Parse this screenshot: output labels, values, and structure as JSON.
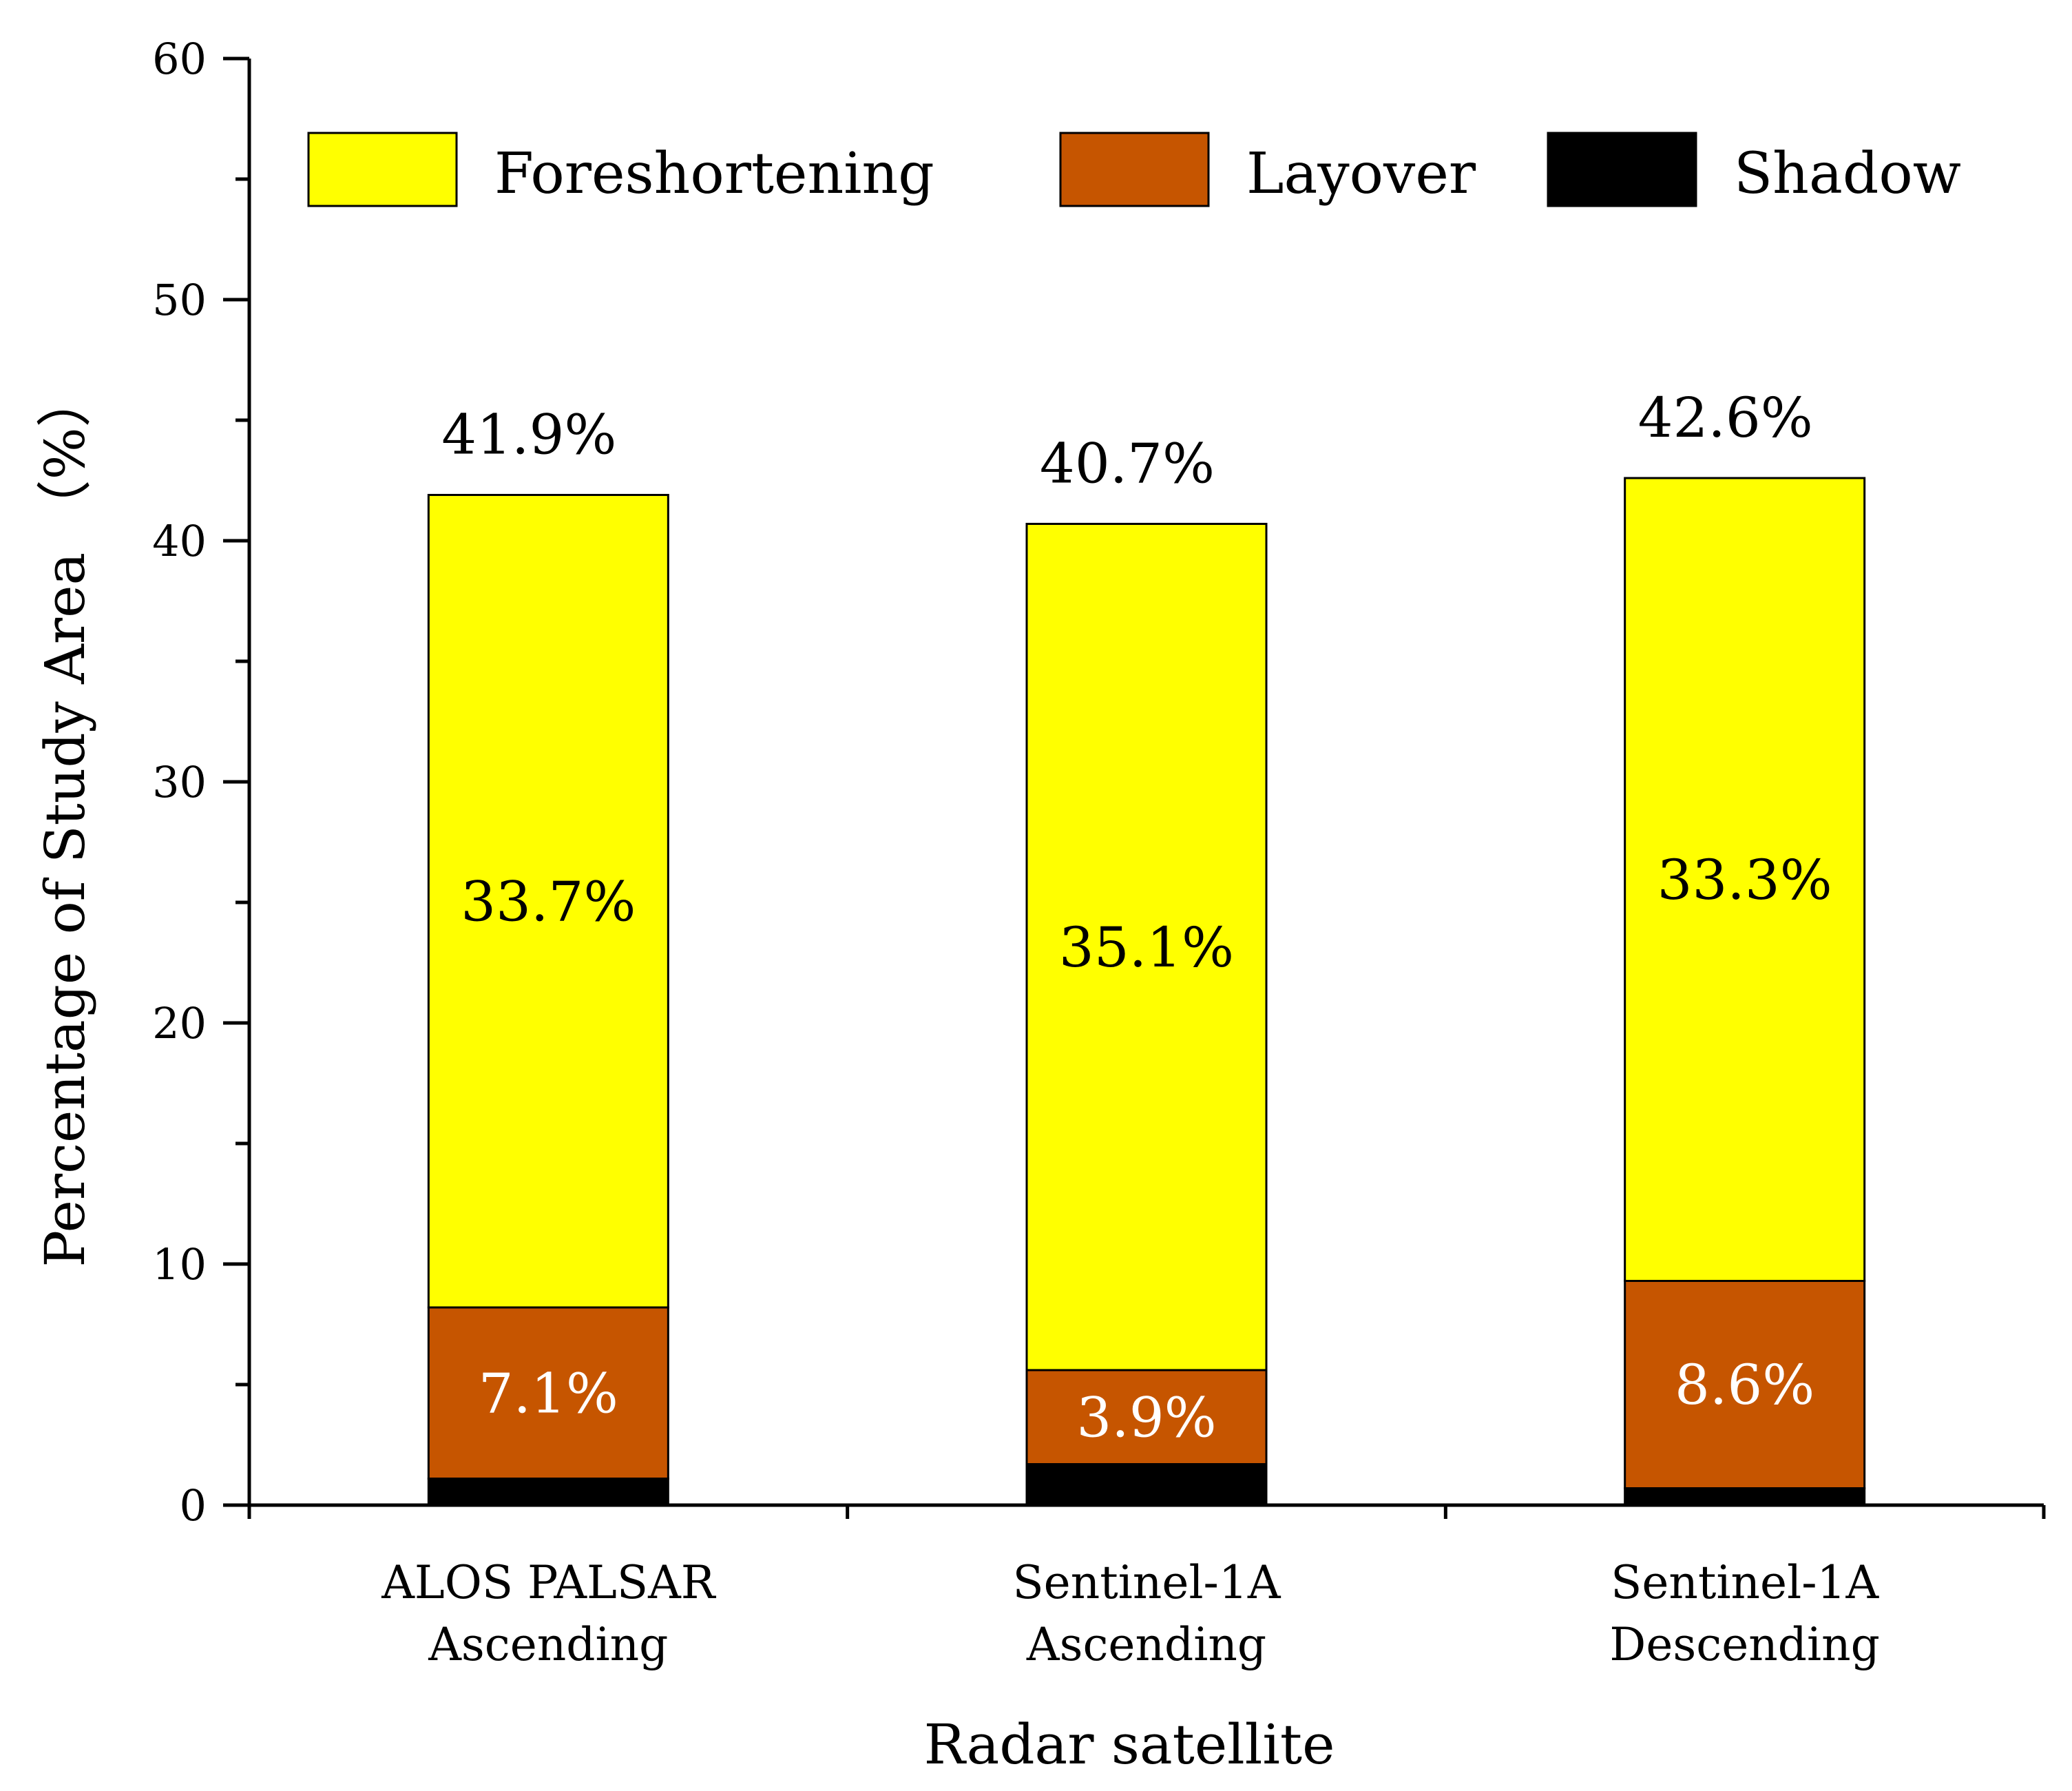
{
  "chart_data": {
    "type": "bar",
    "stacked": true,
    "title": "",
    "xlabel": "Radar satellite",
    "ylabel": "Percentage of Study Area （%）",
    "ylim": [
      0,
      60
    ],
    "yticks": [
      0,
      10,
      20,
      30,
      40,
      50,
      60
    ],
    "categories": [
      [
        "ALOS PALSAR",
        "Ascending"
      ],
      [
        "Sentinel-1A",
        "Ascending"
      ],
      [
        "Sentinel-1A",
        "Descending"
      ]
    ],
    "series": [
      {
        "name": "Shadow",
        "color": "#000000",
        "values": [
          1.1,
          1.7,
          0.7
        ],
        "labels": [
          null,
          null,
          null
        ],
        "label_color": "#ffffff"
      },
      {
        "name": "Layover",
        "color": "#c65500",
        "values": [
          7.1,
          3.9,
          8.6
        ],
        "labels": [
          "7.1%",
          "3.9%",
          "8.6%"
        ],
        "label_color": "#ffffff"
      },
      {
        "name": "Foreshortening",
        "color": "#ffff00",
        "values": [
          33.7,
          35.1,
          33.3
        ],
        "labels": [
          "33.7%",
          "35.1%",
          "33.3%"
        ],
        "label_color": "#000000"
      }
    ],
    "totals": [
      41.9,
      40.7,
      42.6
    ],
    "total_labels": [
      "41.9%",
      "40.7%",
      "42.6%"
    ],
    "legend": {
      "position": "top",
      "entries": [
        "Foreshortening",
        "Layover",
        "Shadow"
      ],
      "colors": [
        "#ffff00",
        "#c65500",
        "#000000"
      ]
    },
    "grid": false
  }
}
